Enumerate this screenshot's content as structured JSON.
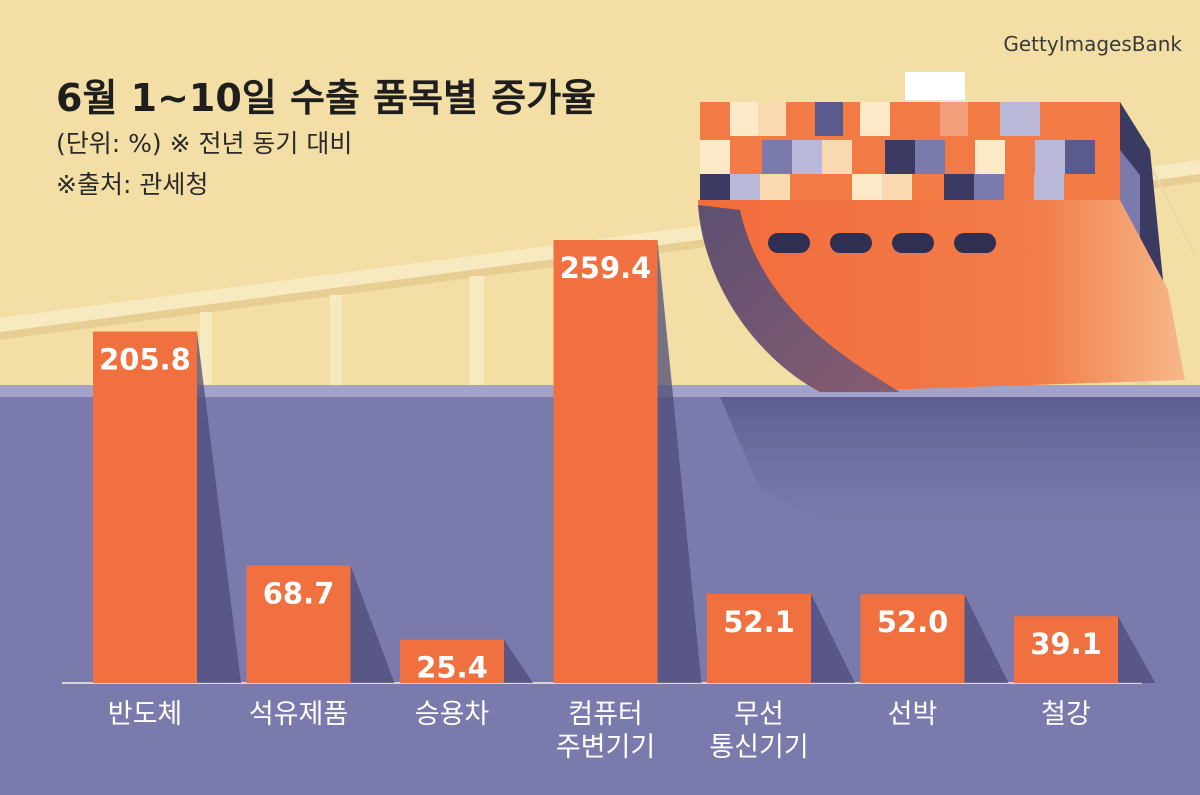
{
  "header": {
    "title": "6월 1~10일 수출 품목별 증가율",
    "subtitle": "(단위: %) ※ 전년 동기 대비",
    "source": "※출처: 관세청"
  },
  "credit": "GettyImagesBank",
  "colors": {
    "sky": "#f3dfa6",
    "water": "#7b7aad",
    "bar": "#f0703f",
    "shadow": "#4d4c78"
  },
  "chart_data": {
    "type": "bar",
    "categories": [
      [
        "반도체"
      ],
      [
        "석유제품"
      ],
      [
        "승용차"
      ],
      [
        "컴퓨터",
        "주변기기"
      ],
      [
        "무선",
        "통신기기"
      ],
      [
        "선박"
      ],
      [
        "철강"
      ]
    ],
    "values": [
      205.8,
      68.7,
      25.4,
      259.4,
      52.1,
      52.0,
      39.1
    ],
    "value_labels": [
      "205.8",
      "68.7",
      "25.4",
      "259.4",
      "52.1",
      "52.0",
      "39.1"
    ],
    "title": "6월 1~10일 수출 품목별 증가율",
    "xlabel": "",
    "ylabel": "",
    "ylim": [
      0,
      260
    ],
    "grid": false
  }
}
